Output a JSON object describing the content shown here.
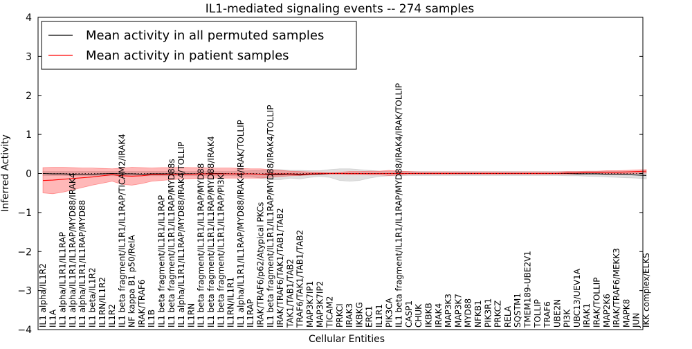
{
  "chart_data": {
    "type": "line",
    "title": "IL1-mediated signaling events -- 274 samples",
    "xlabel": "Cellular Entities",
    "ylabel": "Inferred Activity",
    "ylim": [
      -4,
      4
    ],
    "yticks": [
      -4,
      -3,
      -2,
      -1,
      0,
      1,
      2,
      3,
      4
    ],
    "grid": false,
    "legend_position": "top-left",
    "categories": [
      "IL1 alpha/IL1R2",
      "IL1A",
      "IL1 alpha/IL1R1/IL1RAP",
      "IL1 alpha/IL1R1/IL1RAP/MYD88/IRAK4",
      "IL1 alpha/IL1R1/IL1RAP/MYD88",
      "IL1 beta/IL1R2",
      "IL1RN/IL1R2",
      "IL1R2",
      "IL1 beta fragment/IL1R1/IL1RAP/TICAM2/IRAK4",
      "NF kappa B1 p50/RelA",
      "IRAK/TRAF6",
      "IL1B",
      "IL1 beta fragment/IL1R1/IL1RAP",
      "IL1 beta fragment/IL1R1/IL1RAP/MYD88s",
      "IL1 alpha/IL1R1/IL1RAP/MYD88/IRAK4/TOLLIP",
      "IL1RN",
      "IL1 beta fragment/IL1R1/IL1RAP/MYD88",
      "IL1 beta fragment/IL1R1/IL1RAP/MYD88/IRAK4",
      "IL1 beta fragment/IL1R1/IL1RAP/PI3K",
      "IL1RN/IL1R1",
      "IL1 alpha/IL1R1/IL1RAP/MYD88/IRAK4/IRAK/TOLLIP",
      "IL1RAP",
      "IRAK/TRAF6/p62/Atypical PKCs",
      "IL1 beta fragment/IL1R1/IL1RAP/MYD88/IRAK4/TOLLIP",
      "IRAK/TRAF6/TAK1/TAB1/TAB2",
      "TAK1/TAB1/TAB2",
      "TRAF6/TAK1/TAB1/TAB2",
      "MAP3K7IP1",
      "MAP3K7IP2",
      "TICAM2",
      "PRKCI",
      "IRAK3",
      "IKBKG",
      "ERC1",
      "IL1R1",
      "PIK3CA",
      "IL1 beta fragment/IL1R1/IL1RAP/MYD88/IRAK4/IRAK/TOLLIP",
      "CASP1",
      "CHUK",
      "IKBKB",
      "IRAK4",
      "MAP3K3",
      "MAP3K7",
      "MYD88",
      "NFKB1",
      "PIK3R1",
      "PRKCZ",
      "RELA",
      "SQSTM1",
      "TMEM189-UBE2V1",
      "TOLLIP",
      "TRAF6",
      "UBE2N",
      "PI3K",
      "UBC13/UEV1A",
      "IRAK1",
      "IRAK/TOLLIP",
      "MAP2K6",
      "IRAK/TRAF6/MEKK3",
      "MAPK8",
      "JUN",
      "IKK complex/ELKS"
    ],
    "series": [
      {
        "name": "Mean activity in all permuted samples",
        "color": "#000000",
        "values": [
          0.0,
          -0.01,
          -0.01,
          -0.02,
          -0.02,
          -0.02,
          -0.01,
          0.0,
          -0.01,
          -0.01,
          -0.02,
          -0.01,
          -0.01,
          -0.01,
          -0.01,
          -0.01,
          -0.01,
          0.0,
          0.0,
          -0.01,
          -0.01,
          -0.01,
          -0.02,
          -0.03,
          -0.03,
          -0.02,
          -0.04,
          -0.02,
          -0.01,
          0.0,
          0.0,
          0.0,
          0.0,
          0.0,
          0.0,
          0.0,
          0.0,
          0.0,
          0.0,
          0.0,
          0.0,
          0.0,
          0.0,
          0.0,
          0.0,
          0.0,
          0.0,
          0.0,
          0.0,
          0.0,
          0.0,
          0.0,
          0.0,
          0.0,
          -0.01,
          -0.01,
          -0.01,
          -0.02,
          -0.02,
          -0.03,
          -0.04,
          -0.05
        ],
        "band": {
          "color": "#999999",
          "lower": [
            -0.05,
            -0.05,
            -0.05,
            -0.06,
            -0.06,
            -0.06,
            -0.06,
            -0.06,
            -0.06,
            -0.06,
            -0.06,
            -0.06,
            -0.06,
            -0.06,
            -0.06,
            -0.06,
            -0.06,
            -0.06,
            -0.06,
            -0.06,
            -0.07,
            -0.08,
            -0.12,
            -0.16,
            -0.16,
            -0.12,
            -0.14,
            -0.1,
            -0.08,
            -0.1,
            -0.18,
            -0.2,
            -0.18,
            -0.12,
            -0.08,
            -0.06,
            -0.06,
            -0.05,
            -0.05,
            -0.05,
            -0.05,
            -0.05,
            -0.05,
            -0.05,
            -0.05,
            -0.05,
            -0.05,
            -0.05,
            -0.05,
            -0.05,
            -0.05,
            -0.05,
            -0.05,
            -0.06,
            -0.06,
            -0.07,
            -0.08,
            -0.09,
            -0.1,
            -0.11,
            -0.12,
            -0.14
          ],
          "upper": [
            0.05,
            0.05,
            0.05,
            0.05,
            0.05,
            0.05,
            0.05,
            0.05,
            0.05,
            0.05,
            0.05,
            0.05,
            0.05,
            0.05,
            0.05,
            0.05,
            0.05,
            0.05,
            0.05,
            0.05,
            0.06,
            0.07,
            0.08,
            0.1,
            0.1,
            0.08,
            0.08,
            0.07,
            0.07,
            0.1,
            0.12,
            0.12,
            0.1,
            0.08,
            0.06,
            0.05,
            0.05,
            0.05,
            0.05,
            0.05,
            0.05,
            0.05,
            0.05,
            0.05,
            0.05,
            0.05,
            0.05,
            0.05,
            0.05,
            0.05,
            0.05,
            0.05,
            0.05,
            0.05,
            0.05,
            0.05,
            0.05,
            0.05,
            0.05,
            0.05,
            0.05,
            0.06
          ]
        }
      },
      {
        "name": "Mean activity in patient samples",
        "color": "#ff0000",
        "values": [
          -0.18,
          -0.17,
          -0.15,
          -0.13,
          -0.11,
          -0.09,
          -0.06,
          -0.03,
          -0.06,
          -0.07,
          -0.06,
          -0.03,
          -0.03,
          -0.02,
          -0.02,
          -0.02,
          -0.01,
          -0.01,
          -0.01,
          -0.01,
          -0.01,
          -0.01,
          -0.02,
          -0.01,
          -0.01,
          -0.01,
          -0.02,
          -0.01,
          0.0,
          0.0,
          0.0,
          0.0,
          0.0,
          0.0,
          0.0,
          0.0,
          0.0,
          0.0,
          0.0,
          0.0,
          0.0,
          0.0,
          0.0,
          0.0,
          0.0,
          0.0,
          0.0,
          0.0,
          0.0,
          0.0,
          0.0,
          0.0,
          0.0,
          0.01,
          0.01,
          0.02,
          0.02,
          0.03,
          0.03,
          0.04,
          0.05,
          0.06
        ],
        "band": {
          "color": "#ff0000",
          "lower": [
            -0.5,
            -0.52,
            -0.48,
            -0.42,
            -0.36,
            -0.3,
            -0.25,
            -0.2,
            -0.28,
            -0.3,
            -0.26,
            -0.2,
            -0.18,
            -0.16,
            -0.14,
            -0.13,
            -0.12,
            -0.12,
            -0.12,
            -0.12,
            -0.12,
            -0.12,
            -0.12,
            -0.1,
            -0.08,
            -0.06,
            -0.05,
            -0.04,
            -0.03,
            -0.02,
            -0.02,
            -0.03,
            -0.03,
            -0.04,
            -0.04,
            -0.05,
            -0.04,
            -0.02,
            -0.02,
            -0.02,
            -0.02,
            -0.02,
            -0.02,
            -0.02,
            -0.02,
            -0.02,
            -0.02,
            -0.02,
            -0.02,
            -0.02,
            -0.02,
            -0.02,
            -0.02,
            -0.02,
            -0.01,
            -0.01,
            -0.01,
            -0.01,
            -0.01,
            0.0,
            0.0,
            0.01
          ],
          "upper": [
            0.15,
            0.16,
            0.16,
            0.15,
            0.14,
            0.14,
            0.13,
            0.12,
            0.14,
            0.16,
            0.15,
            0.14,
            0.15,
            0.15,
            0.16,
            0.15,
            0.15,
            0.14,
            0.14,
            0.14,
            0.13,
            0.12,
            0.12,
            0.1,
            0.08,
            0.06,
            0.05,
            0.04,
            0.03,
            0.02,
            0.03,
            0.05,
            0.05,
            0.06,
            0.06,
            0.08,
            0.06,
            0.05,
            0.04,
            0.04,
            0.04,
            0.04,
            0.04,
            0.04,
            0.04,
            0.04,
            0.04,
            0.04,
            0.04,
            0.04,
            0.04,
            0.04,
            0.04,
            0.05,
            0.05,
            0.06,
            0.06,
            0.07,
            0.07,
            0.08,
            0.09,
            0.1
          ]
        }
      }
    ]
  }
}
